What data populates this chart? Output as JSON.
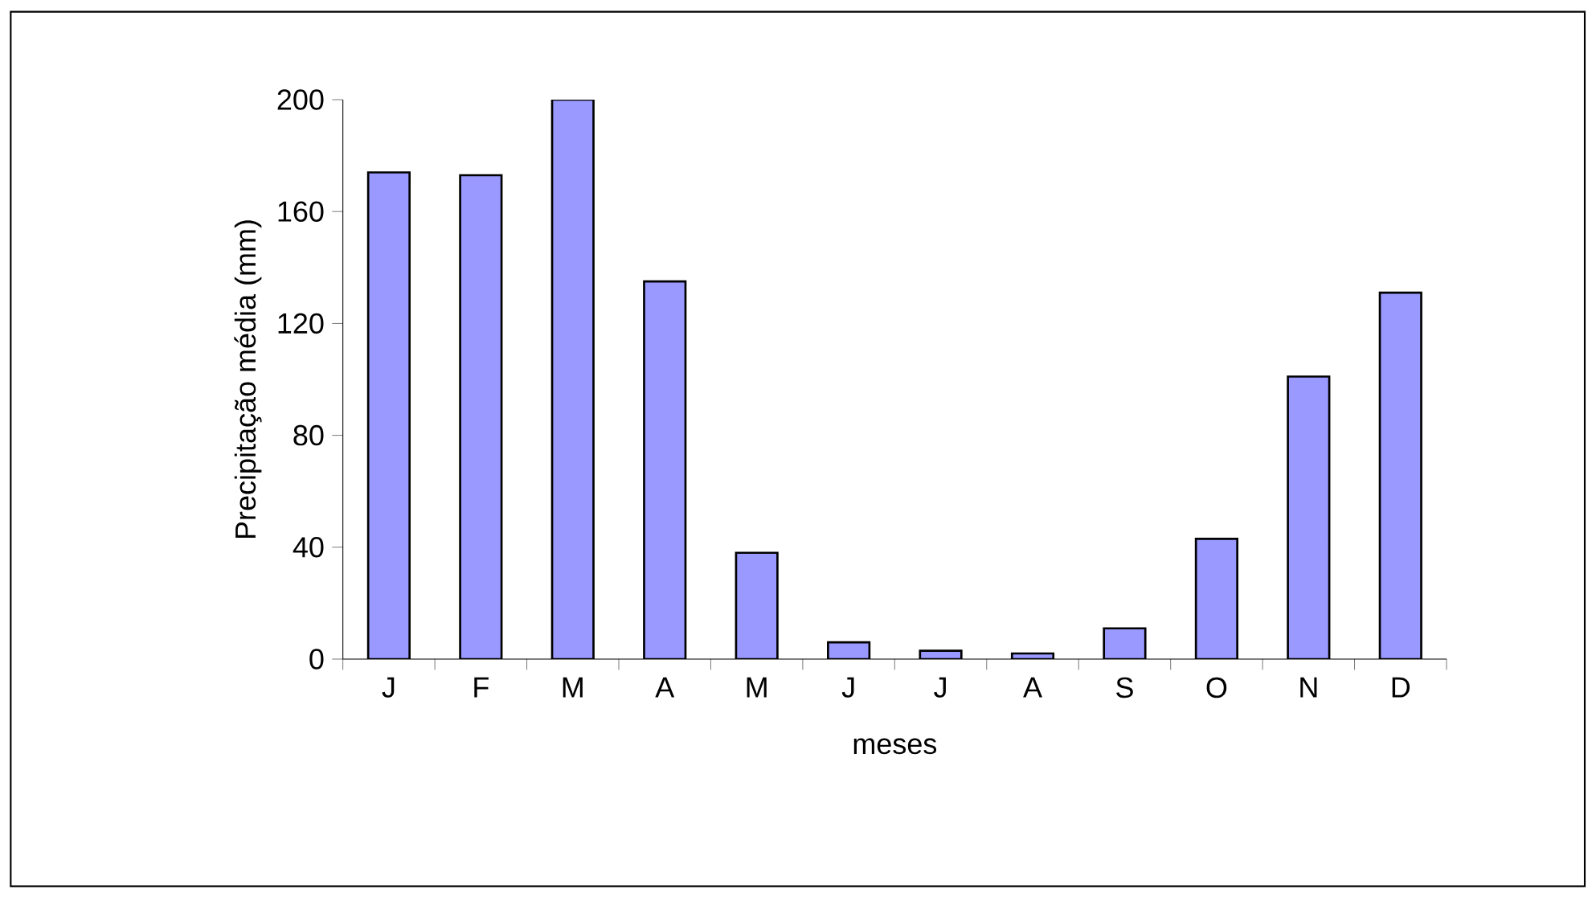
{
  "chart_data": {
    "type": "bar",
    "xlabel": "meses",
    "ylabel": "Precipitação média (mm)",
    "categories": [
      "J",
      "F",
      "M",
      "A",
      "M",
      "J",
      "J",
      "A",
      "S",
      "O",
      "N",
      "D"
    ],
    "values": [
      174,
      173,
      200,
      135,
      38,
      6,
      3,
      2,
      11,
      43,
      101,
      131
    ],
    "color": "#9999ff",
    "ylim": [
      0,
      200
    ],
    "yticks": [
      0,
      40,
      80,
      120,
      160,
      200
    ]
  }
}
